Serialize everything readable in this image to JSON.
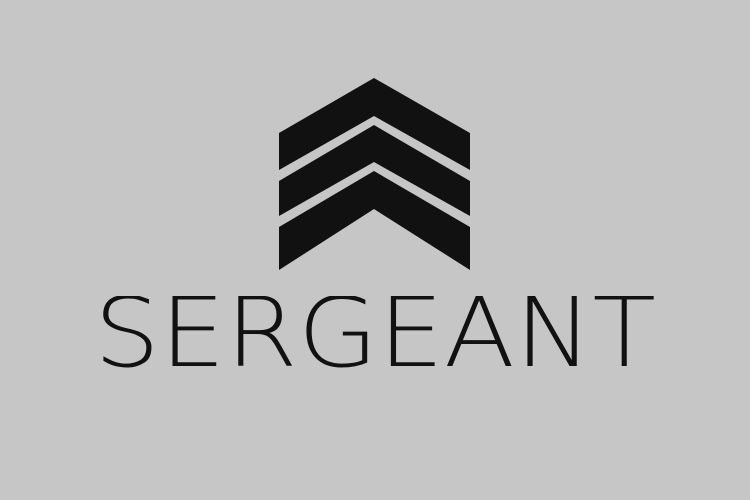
{
  "brand": {
    "name": "SERGEANT",
    "ink_color": "#111111",
    "background_color": "#c6c6c6",
    "mark": "chevron-stripes-icon"
  }
}
